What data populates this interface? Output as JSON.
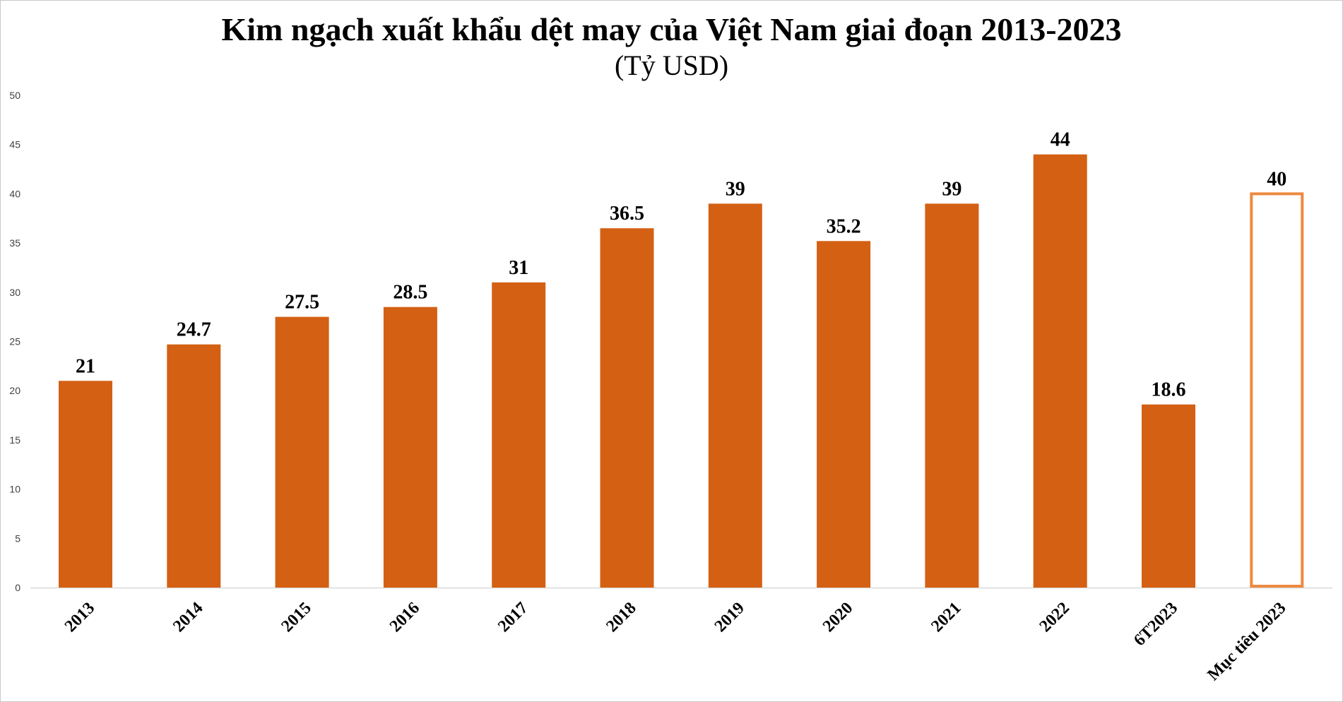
{
  "chart_data": {
    "type": "bar",
    "title": "Kim ngạch xuất khẩu dệt may của Việt Nam giai đoạn 2013-2023",
    "subtitle": "(Tỷ USD)",
    "categories": [
      "2013",
      "2014",
      "2015",
      "2016",
      "2017",
      "2018",
      "2019",
      "2020",
      "2021",
      "2022",
      "6T2023",
      "Mục tiêu 2023"
    ],
    "values": [
      21,
      24.7,
      27.5,
      28.5,
      31,
      36.5,
      39,
      35.2,
      39,
      44,
      18.6,
      40
    ],
    "value_labels": [
      "21",
      "24.7",
      "27.5",
      "28.5",
      "31",
      "36.5",
      "39",
      "35.2",
      "39",
      "44",
      "18.6",
      "40"
    ],
    "bar_styles": [
      "filled",
      "filled",
      "filled",
      "filled",
      "filled",
      "filled",
      "filled",
      "filled",
      "filled",
      "filled",
      "filled",
      "outline"
    ],
    "ylim": [
      0,
      50
    ],
    "yticks": [
      "0",
      "5",
      "10",
      "15",
      "20",
      "25",
      "30",
      "35",
      "40",
      "45",
      "50"
    ],
    "grid": false,
    "legend": "none",
    "colors": {
      "bar_fill": "#D46014",
      "outline_bar_stroke": "#ED8A3F"
    }
  }
}
